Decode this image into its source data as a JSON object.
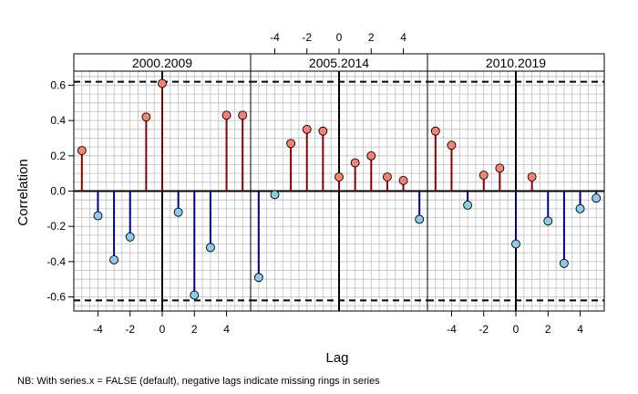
{
  "chart_data": {
    "type": "lollipop",
    "ylabel": "Correlation",
    "xlabel": "Lag",
    "xlim": [
      -5.5,
      5.5
    ],
    "ylim": [
      -0.68,
      0.68
    ],
    "x_tick_values": [
      -4,
      -2,
      0,
      2,
      4
    ],
    "x_tick_labels": [
      "-4",
      "-2",
      "0",
      "2",
      "4"
    ],
    "y_tick_values": [
      -0.6,
      -0.4,
      -0.2,
      0.0,
      0.2,
      0.4,
      0.6
    ],
    "y_tick_labels": [
      "-0.6",
      "-0.4",
      "-0.2",
      "0.0",
      "0.2",
      "0.4",
      "0.6"
    ],
    "significance_level": 0.62,
    "grid": true,
    "colors": {
      "positive_line": "#8B0000",
      "positive_point": "#FA8072",
      "negative_line": "#00008B",
      "negative_point": "#87CEEB",
      "strip_bg": "#FFFFFF",
      "grid": "#BEBEBE"
    },
    "panels": [
      {
        "label": "2000.2009",
        "lags": [
          -5,
          -4,
          -3,
          -2,
          -1,
          0,
          1,
          2,
          3,
          4,
          5
        ],
        "values": [
          0.23,
          -0.14,
          -0.39,
          -0.26,
          0.42,
          0.61,
          -0.12,
          -0.59,
          -0.32,
          0.43,
          0.43
        ]
      },
      {
        "label": "2005.2014",
        "lags": [
          -5,
          -4,
          -3,
          -2,
          -1,
          0,
          1,
          2,
          3,
          4,
          5
        ],
        "values": [
          -0.49,
          -0.02,
          0.27,
          0.35,
          0.34,
          0.08,
          0.16,
          0.2,
          0.08,
          0.06,
          -0.16
        ]
      },
      {
        "label": "2010.2019",
        "lags": [
          -5,
          -4,
          -3,
          -2,
          -1,
          0,
          1,
          2,
          3,
          4,
          5
        ],
        "values": [
          0.34,
          0.26,
          -0.08,
          0.09,
          0.13,
          -0.3,
          0.08,
          -0.17,
          -0.41,
          -0.1,
          -0.04
        ]
      }
    ]
  },
  "footnote": "NB: With series.x = FALSE (default), negative lags indicate missing rings in series"
}
